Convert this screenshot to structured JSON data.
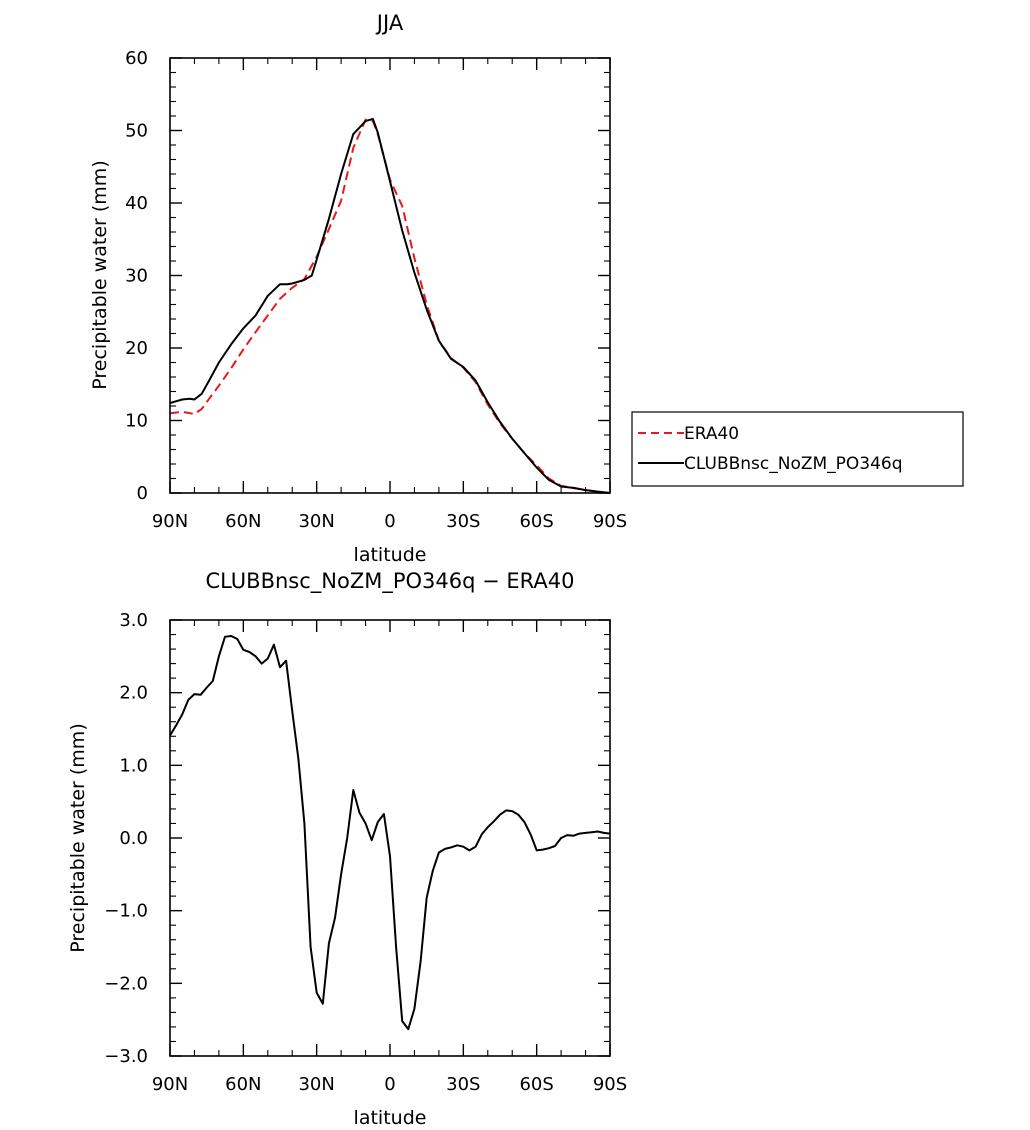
{
  "chart_data": [
    {
      "type": "line",
      "title": "JJA",
      "xlabel": "latitude",
      "ylabel": "Precipitable water (mm)",
      "xlim": [
        90,
        -90
      ],
      "ylim": [
        0,
        60
      ],
      "x_ticks": [
        90,
        60,
        30,
        0,
        -30,
        -60,
        -90
      ],
      "x_tick_labels": [
        "90N",
        "60N",
        "30N",
        "0",
        "30S",
        "60S",
        "90S"
      ],
      "y_ticks": [
        0,
        10,
        20,
        30,
        40,
        50,
        60
      ],
      "y_tick_labels": [
        "0",
        "10",
        "20",
        "30",
        "40",
        "50",
        "60"
      ],
      "grid": false,
      "legend_position": "right",
      "series": [
        {
          "name": "ERA40",
          "color": "#e41a1c",
          "dash": "dashed",
          "x": [
            90,
            85,
            80,
            77,
            74,
            70,
            65,
            60,
            55,
            50,
            45,
            40,
            35,
            30,
            25,
            20,
            15,
            10,
            7,
            5,
            0,
            -5,
            -10,
            -15,
            -20,
            -25,
            -30,
            -35,
            -40,
            -45,
            -50,
            -55,
            -60,
            -65,
            -70,
            -75,
            -80,
            -85,
            -90
          ],
          "y": [
            11,
            11.2,
            10.9,
            11.6,
            13,
            14.8,
            17.2,
            19.8,
            22.2,
            24.5,
            26.8,
            28.3,
            29.5,
            32.6,
            36.4,
            40.3,
            47.6,
            51.5,
            51.3,
            49.5,
            43.2,
            39.6,
            32.4,
            26,
            21,
            18.6,
            17.3,
            15.3,
            12.2,
            9.6,
            7.5,
            5.5,
            3.8,
            2,
            1,
            0.7,
            0.4,
            0.2,
            0
          ]
        },
        {
          "name": "CLUBBnsc_NoZM_PO346q",
          "color": "#000000",
          "dash": "solid",
          "x": [
            90,
            85,
            82,
            80,
            77,
            74,
            70,
            65,
            60,
            55,
            50,
            45,
            42,
            40,
            35,
            32,
            30,
            25,
            20,
            15,
            10,
            7,
            5,
            0,
            -5,
            -10,
            -15,
            -20,
            -25,
            -30,
            -35,
            -40,
            -45,
            -50,
            -55,
            -60,
            -65,
            -70,
            -75,
            -80,
            -85,
            -90
          ],
          "y": [
            12.4,
            12.9,
            13,
            12.9,
            13.7,
            15.5,
            18,
            20.5,
            22.7,
            24.5,
            27.2,
            28.8,
            28.8,
            28.9,
            29.4,
            30,
            32.2,
            37.8,
            44,
            49.5,
            51.3,
            51.6,
            49.7,
            43,
            36.2,
            30.4,
            25.3,
            21,
            18.5,
            17.4,
            15.5,
            12.5,
            9.8,
            7.5,
            5.5,
            3.5,
            1.8,
            0.9,
            0.7,
            0.4,
            0.2,
            0
          ]
        }
      ]
    },
    {
      "type": "line",
      "title": "CLUBBnsc_NoZM_PO346q − ERA40",
      "xlabel": "latitude",
      "ylabel": "Precipitable water (mm)",
      "xlim": [
        90,
        -90
      ],
      "ylim": [
        -3,
        3
      ],
      "x_ticks": [
        90,
        60,
        30,
        0,
        -30,
        -60,
        -90
      ],
      "x_tick_labels": [
        "90N",
        "60N",
        "30N",
        "0",
        "30S",
        "60S",
        "90S"
      ],
      "y_ticks": [
        -3,
        -2,
        -1,
        0,
        1,
        2,
        3
      ],
      "y_tick_labels": [
        "−3.0",
        "−2.0",
        "−1.0",
        "0.0",
        "1.0",
        "2.0",
        "3.0"
      ],
      "grid": false,
      "series": [
        {
          "color": "#000000",
          "dash": "solid",
          "x": [
            90,
            87.5,
            85,
            82.5,
            80,
            77.5,
            75,
            72.5,
            70,
            67.5,
            65,
            62.5,
            60,
            57.5,
            55,
            52.5,
            50,
            47.5,
            45,
            42.5,
            40,
            37.5,
            35,
            32.5,
            30,
            27.5,
            25,
            22.5,
            20,
            17.5,
            15,
            12.5,
            10,
            7.5,
            5,
            2.5,
            0,
            -2.5,
            -5,
            -7.5,
            -10,
            -12.5,
            -15,
            -17.5,
            -20,
            -22.5,
            -25,
            -27.5,
            -30,
            -32.5,
            -35,
            -37.5,
            -40,
            -42.5,
            -45,
            -47.5,
            -50,
            -52.5,
            -55,
            -57.5,
            -60,
            -62.5,
            -65,
            -67.5,
            -70,
            -72.5,
            -75,
            -77.5,
            -80,
            -82.5,
            -85,
            -87.5,
            -90
          ],
          "y": [
            1.41,
            1.55,
            1.7,
            1.9,
            1.98,
            1.97,
            2.07,
            2.16,
            2.5,
            2.77,
            2.78,
            2.74,
            2.59,
            2.56,
            2.5,
            2.4,
            2.47,
            2.66,
            2.35,
            2.44,
            1.75,
            1.1,
            0.2,
            -1.5,
            -2.13,
            -2.28,
            -1.45,
            -1.1,
            -0.5,
            0.0,
            0.66,
            0.35,
            0.2,
            -0.03,
            0.22,
            0.33,
            -0.25,
            -1.5,
            -2.52,
            -2.63,
            -2.35,
            -1.7,
            -0.82,
            -0.45,
            -0.2,
            -0.15,
            -0.13,
            -0.1,
            -0.12,
            -0.17,
            -0.12,
            0.05,
            0.15,
            0.23,
            0.32,
            0.38,
            0.37,
            0.32,
            0.22,
            0.05,
            -0.17,
            -0.16,
            -0.14,
            -0.11,
            0.0,
            0.04,
            0.03,
            0.06,
            0.07,
            0.08,
            0.09,
            0.07,
            0.06
          ]
        }
      ]
    }
  ]
}
